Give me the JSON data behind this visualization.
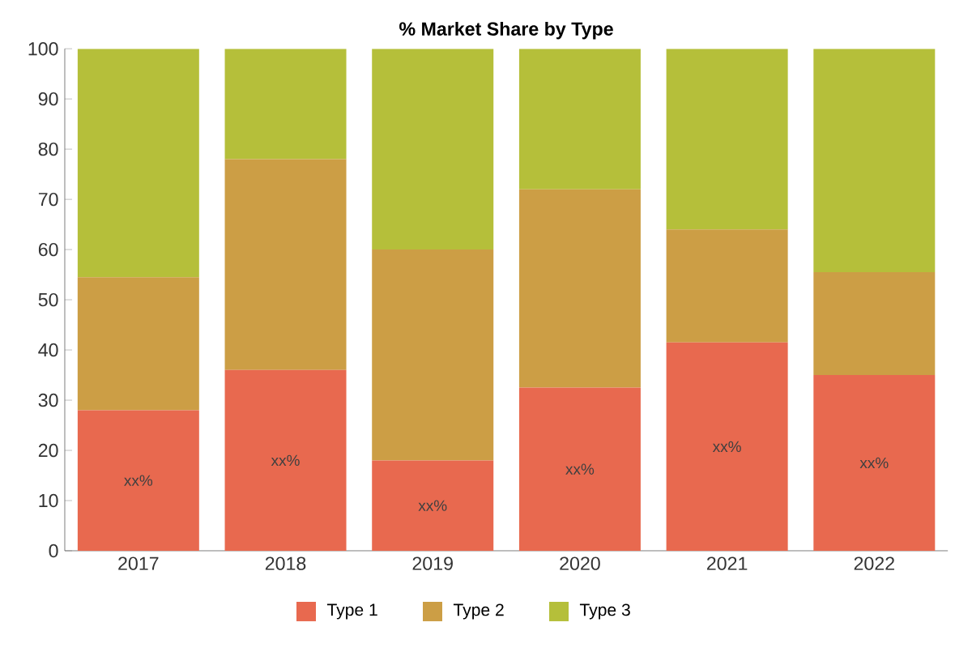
{
  "chart_data": {
    "type": "bar",
    "title": "% Market Share by Type",
    "stacked": true,
    "categories": [
      "2017",
      "2018",
      "2019",
      "2020",
      "2021",
      "2022"
    ],
    "series": [
      {
        "name": "Type 1",
        "color": "#e8694f",
        "values": [
          28,
          36,
          18,
          32.5,
          41.5,
          35
        ],
        "value_labels": [
          "xx%",
          "xx%",
          "xx%",
          "xx%",
          "xx%",
          "xx%"
        ]
      },
      {
        "name": "Type 2",
        "color": "#cc9e45",
        "values": [
          26.5,
          42,
          42,
          39.5,
          22.5,
          20.5
        ]
      },
      {
        "name": "Type 3",
        "color": "#b5bf3a",
        "values": [
          45.5,
          22,
          40,
          28,
          36,
          44.5
        ]
      }
    ],
    "ylim": [
      0,
      100
    ],
    "yticks": [
      0,
      10,
      20,
      30,
      40,
      50,
      60,
      70,
      80,
      90,
      100
    ],
    "grid": false,
    "legend": "bottom"
  }
}
